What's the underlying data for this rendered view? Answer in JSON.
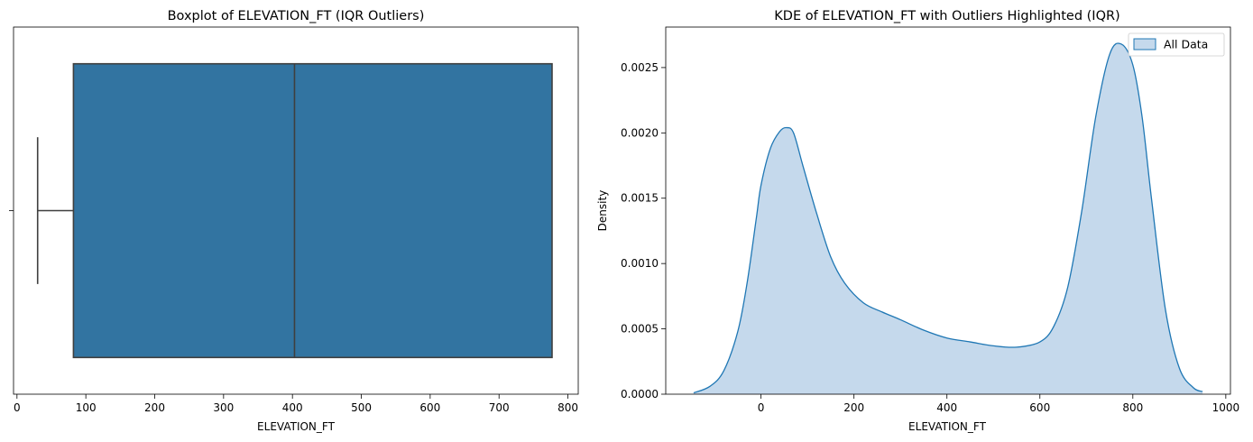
{
  "chart_data": [
    {
      "type": "boxplot",
      "title": "Boxplot of ELEVATION_FT (IQR Outliers)",
      "xlabel": "ELEVATION_FT",
      "ylabel": "",
      "xlim": [
        -5,
        815
      ],
      "xticks": [
        0,
        100,
        200,
        300,
        400,
        500,
        600,
        700,
        800
      ],
      "xtick_labels": [
        "0",
        "100",
        "200",
        "300",
        "400",
        "500",
        "600",
        "700",
        "800"
      ],
      "box": {
        "whisker_low": 30,
        "q1": 82,
        "median": 403,
        "q3": 777,
        "whisker_high": 777
      },
      "color": "#3274a1",
      "line_color": "#3f3f3f"
    },
    {
      "type": "area",
      "title": "KDE of ELEVATION_FT with Outliers Highlighted (IQR)",
      "xlabel": "ELEVATION_FT",
      "ylabel": "Density",
      "xlim": [
        -205,
        1010
      ],
      "ylim": [
        0,
        0.00281
      ],
      "grid": false,
      "legend_position": "top-right",
      "xticks": [
        0,
        200,
        400,
        600,
        800,
        1000
      ],
      "xtick_labels": [
        "0",
        "200",
        "400",
        "600",
        "800",
        "1000"
      ],
      "yticks": [
        0,
        0.0005,
        0.001,
        0.0015,
        0.002,
        0.0025
      ],
      "ytick_labels": [
        "0.0000",
        "0.0005",
        "0.0010",
        "0.0015",
        "0.0020",
        "0.0025"
      ],
      "series": [
        {
          "name": "All Data",
          "color": "#1f77b4",
          "fill": "#c5d9ec",
          "x": [
            -145,
            -110,
            -80,
            -50,
            -30,
            -10,
            0,
            20,
            40,
            55,
            70,
            90,
            120,
            150,
            180,
            220,
            260,
            300,
            350,
            400,
            450,
            500,
            550,
            600,
            630,
            660,
            690,
            720,
            750,
            775,
            800,
            820,
            840,
            870,
            900,
            930,
            950
          ],
          "y": [
            1e-05,
            6e-05,
            0.00018,
            0.00048,
            0.00085,
            0.00135,
            0.0016,
            0.00188,
            0.00201,
            0.00204,
            0.002,
            0.00175,
            0.00138,
            0.00105,
            0.00085,
            0.0007,
            0.00063,
            0.00057,
            0.00049,
            0.00043,
            0.0004,
            0.00037,
            0.00036,
            0.0004,
            0.00052,
            0.00082,
            0.0014,
            0.00212,
            0.0026,
            0.00268,
            0.00252,
            0.00212,
            0.0015,
            0.00065,
            0.0002,
            5e-05,
            2e-05
          ]
        }
      ]
    }
  ]
}
